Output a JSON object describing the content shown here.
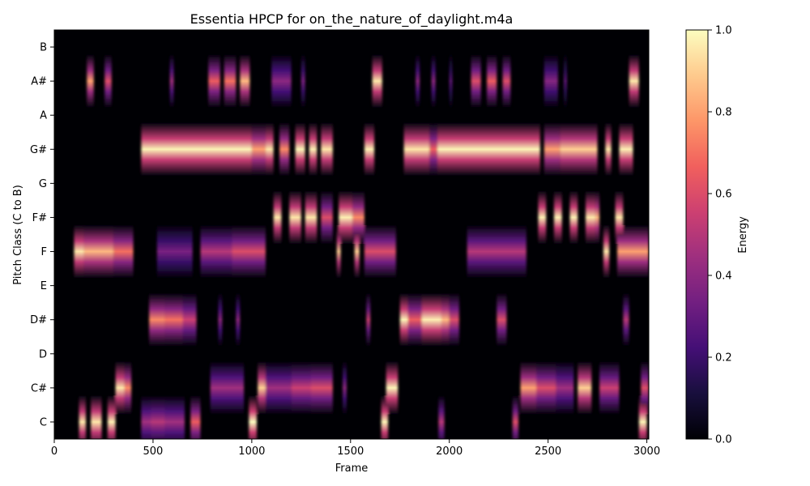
{
  "chart_data": {
    "type": "heatmap",
    "title": "Essentia HPCP for on_the_nature_of_daylight.m4a",
    "xlabel": "Frame",
    "ylabel": "Pitch Class (C to B)",
    "xlim": [
      0,
      3010
    ],
    "x_ticks": [
      0,
      500,
      1000,
      1500,
      2000,
      2500,
      3000
    ],
    "pitch_classes": [
      "C",
      "C#",
      "D",
      "D#",
      "E",
      "F",
      "F#",
      "G",
      "G#",
      "A",
      "A#",
      "B"
    ],
    "colorbar": {
      "label": "Energy",
      "range": [
        0,
        1
      ],
      "ticks": [
        "0.0",
        "0.2",
        "0.4",
        "0.6",
        "0.8",
        "1.0"
      ],
      "colormap": "magma",
      "stops": [
        "#000004",
        "#180f3d",
        "#440f76",
        "#721f81",
        "#9e2f7f",
        "#cd4071",
        "#f1605d",
        "#fd9668",
        "#feca8d",
        "#fcfdbf"
      ]
    },
    "segments": [
      {
        "pitch": "C",
        "start": 125,
        "end": 160,
        "value": 0.95
      },
      {
        "pitch": "C",
        "start": 185,
        "end": 240,
        "value": 0.95
      },
      {
        "pitch": "C",
        "start": 270,
        "end": 310,
        "value": 0.97
      },
      {
        "pitch": "C",
        "start": 440,
        "end": 490,
        "value": 0.45
      },
      {
        "pitch": "C",
        "start": 490,
        "end": 560,
        "value": 0.5
      },
      {
        "pitch": "C",
        "start": 560,
        "end": 660,
        "value": 0.45
      },
      {
        "pitch": "C",
        "start": 690,
        "end": 740,
        "value": 0.65
      },
      {
        "pitch": "C",
        "start": 985,
        "end": 1025,
        "value": 1.0
      },
      {
        "pitch": "C",
        "start": 1655,
        "end": 1690,
        "value": 0.98
      },
      {
        "pitch": "C",
        "start": 1945,
        "end": 1975,
        "value": 0.5
      },
      {
        "pitch": "C",
        "start": 2320,
        "end": 2350,
        "value": 0.6
      },
      {
        "pitch": "C",
        "start": 2960,
        "end": 3000,
        "value": 0.98
      },
      {
        "pitch": "C#",
        "start": 310,
        "end": 355,
        "value": 0.95
      },
      {
        "pitch": "C#",
        "start": 355,
        "end": 390,
        "value": 0.75
      },
      {
        "pitch": "C#",
        "start": 790,
        "end": 960,
        "value": 0.45
      },
      {
        "pitch": "C#",
        "start": 1030,
        "end": 1070,
        "value": 0.9
      },
      {
        "pitch": "C#",
        "start": 1070,
        "end": 1200,
        "value": 0.45
      },
      {
        "pitch": "C#",
        "start": 1200,
        "end": 1300,
        "value": 0.55
      },
      {
        "pitch": "C#",
        "start": 1300,
        "end": 1410,
        "value": 0.6
      },
      {
        "pitch": "C#",
        "start": 1460,
        "end": 1480,
        "value": 0.4
      },
      {
        "pitch": "C#",
        "start": 1680,
        "end": 1740,
        "value": 0.98
      },
      {
        "pitch": "C#",
        "start": 2360,
        "end": 2440,
        "value": 0.8
      },
      {
        "pitch": "C#",
        "start": 2440,
        "end": 2540,
        "value": 0.6
      },
      {
        "pitch": "C#",
        "start": 2540,
        "end": 2630,
        "value": 0.45
      },
      {
        "pitch": "C#",
        "start": 2650,
        "end": 2720,
        "value": 0.9
      },
      {
        "pitch": "C#",
        "start": 2760,
        "end": 2860,
        "value": 0.55
      },
      {
        "pitch": "C#",
        "start": 2970,
        "end": 3010,
        "value": 0.6
      },
      {
        "pitch": "D#",
        "start": 480,
        "end": 560,
        "value": 0.75
      },
      {
        "pitch": "D#",
        "start": 560,
        "end": 650,
        "value": 0.7
      },
      {
        "pitch": "D#",
        "start": 650,
        "end": 720,
        "value": 0.55
      },
      {
        "pitch": "D#",
        "start": 830,
        "end": 850,
        "value": 0.4
      },
      {
        "pitch": "D#",
        "start": 920,
        "end": 940,
        "value": 0.4
      },
      {
        "pitch": "D#",
        "start": 1580,
        "end": 1600,
        "value": 0.55
      },
      {
        "pitch": "D#",
        "start": 1750,
        "end": 1790,
        "value": 0.98
      },
      {
        "pitch": "D#",
        "start": 1790,
        "end": 1860,
        "value": 0.65
      },
      {
        "pitch": "D#",
        "start": 1860,
        "end": 1960,
        "value": 0.97
      },
      {
        "pitch": "D#",
        "start": 1960,
        "end": 2000,
        "value": 0.85
      },
      {
        "pitch": "D#",
        "start": 2000,
        "end": 2050,
        "value": 0.6
      },
      {
        "pitch": "D#",
        "start": 2240,
        "end": 2290,
        "value": 0.6
      },
      {
        "pitch": "D#",
        "start": 2880,
        "end": 2910,
        "value": 0.5
      },
      {
        "pitch": "F",
        "start": 100,
        "end": 150,
        "value": 0.95
      },
      {
        "pitch": "F",
        "start": 150,
        "end": 300,
        "value": 0.85
      },
      {
        "pitch": "F",
        "start": 300,
        "end": 400,
        "value": 0.7
      },
      {
        "pitch": "F",
        "start": 520,
        "end": 700,
        "value": 0.35
      },
      {
        "pitch": "F",
        "start": 740,
        "end": 900,
        "value": 0.5
      },
      {
        "pitch": "F",
        "start": 900,
        "end": 1070,
        "value": 0.6
      },
      {
        "pitch": "F",
        "start": 1430,
        "end": 1450,
        "value": 0.9
      },
      {
        "pitch": "F",
        "start": 1520,
        "end": 1545,
        "value": 0.9
      },
      {
        "pitch": "F",
        "start": 1570,
        "end": 1730,
        "value": 0.6
      },
      {
        "pitch": "F",
        "start": 2090,
        "end": 2390,
        "value": 0.5
      },
      {
        "pitch": "F",
        "start": 2780,
        "end": 2810,
        "value": 0.95
      },
      {
        "pitch": "F",
        "start": 2850,
        "end": 3010,
        "value": 0.8
      },
      {
        "pitch": "F#",
        "start": 1110,
        "end": 1150,
        "value": 0.95
      },
      {
        "pitch": "F#",
        "start": 1190,
        "end": 1250,
        "value": 0.95
      },
      {
        "pitch": "F#",
        "start": 1270,
        "end": 1330,
        "value": 0.95
      },
      {
        "pitch": "F#",
        "start": 1350,
        "end": 1410,
        "value": 0.6
      },
      {
        "pitch": "F#",
        "start": 1440,
        "end": 1510,
        "value": 0.97
      },
      {
        "pitch": "F#",
        "start": 1510,
        "end": 1570,
        "value": 0.75
      },
      {
        "pitch": "F#",
        "start": 2450,
        "end": 2490,
        "value": 0.97
      },
      {
        "pitch": "F#",
        "start": 2530,
        "end": 2570,
        "value": 0.97
      },
      {
        "pitch": "F#",
        "start": 2610,
        "end": 2650,
        "value": 0.97
      },
      {
        "pitch": "F#",
        "start": 2690,
        "end": 2740,
        "value": 0.95
      },
      {
        "pitch": "F#",
        "start": 2740,
        "end": 2760,
        "value": 0.85
      },
      {
        "pitch": "F#",
        "start": 2840,
        "end": 2880,
        "value": 0.95
      },
      {
        "pitch": "G#",
        "start": 440,
        "end": 1000,
        "value": 0.98
      },
      {
        "pitch": "G#",
        "start": 1000,
        "end": 1070,
        "value": 0.8
      },
      {
        "pitch": "G#",
        "start": 1070,
        "end": 1110,
        "value": 0.95
      },
      {
        "pitch": "G#",
        "start": 1140,
        "end": 1190,
        "value": 0.75
      },
      {
        "pitch": "G#",
        "start": 1220,
        "end": 1270,
        "value": 0.98
      },
      {
        "pitch": "G#",
        "start": 1290,
        "end": 1330,
        "value": 0.97
      },
      {
        "pitch": "G#",
        "start": 1350,
        "end": 1410,
        "value": 0.95
      },
      {
        "pitch": "G#",
        "start": 1570,
        "end": 1620,
        "value": 0.97
      },
      {
        "pitch": "G#",
        "start": 1770,
        "end": 1900,
        "value": 0.95
      },
      {
        "pitch": "G#",
        "start": 1900,
        "end": 1940,
        "value": 0.65
      },
      {
        "pitch": "G#",
        "start": 1940,
        "end": 2460,
        "value": 0.98
      },
      {
        "pitch": "G#",
        "start": 2480,
        "end": 2560,
        "value": 0.8
      },
      {
        "pitch": "G#",
        "start": 2560,
        "end": 2750,
        "value": 0.9
      },
      {
        "pitch": "G#",
        "start": 2790,
        "end": 2820,
        "value": 0.95
      },
      {
        "pitch": "G#",
        "start": 2860,
        "end": 2930,
        "value": 0.97
      },
      {
        "pitch": "A#",
        "start": 165,
        "end": 200,
        "value": 0.8
      },
      {
        "pitch": "A#",
        "start": 255,
        "end": 290,
        "value": 0.6
      },
      {
        "pitch": "A#",
        "start": 585,
        "end": 605,
        "value": 0.45
      },
      {
        "pitch": "A#",
        "start": 780,
        "end": 840,
        "value": 0.65
      },
      {
        "pitch": "A#",
        "start": 860,
        "end": 920,
        "value": 0.7
      },
      {
        "pitch": "A#",
        "start": 940,
        "end": 990,
        "value": 0.85
      },
      {
        "pitch": "A#",
        "start": 1100,
        "end": 1200,
        "value": 0.4
      },
      {
        "pitch": "A#",
        "start": 1250,
        "end": 1270,
        "value": 0.35
      },
      {
        "pitch": "A#",
        "start": 1610,
        "end": 1660,
        "value": 0.95
      },
      {
        "pitch": "A#",
        "start": 1830,
        "end": 1850,
        "value": 0.4
      },
      {
        "pitch": "A#",
        "start": 1910,
        "end": 1930,
        "value": 0.4
      },
      {
        "pitch": "A#",
        "start": 2000,
        "end": 2015,
        "value": 0.3
      },
      {
        "pitch": "A#",
        "start": 2110,
        "end": 2160,
        "value": 0.6
      },
      {
        "pitch": "A#",
        "start": 2190,
        "end": 2240,
        "value": 0.65
      },
      {
        "pitch": "A#",
        "start": 2270,
        "end": 2310,
        "value": 0.6
      },
      {
        "pitch": "A#",
        "start": 2480,
        "end": 2550,
        "value": 0.38
      },
      {
        "pitch": "A#",
        "start": 2580,
        "end": 2595,
        "value": 0.3
      },
      {
        "pitch": "A#",
        "start": 2910,
        "end": 2960,
        "value": 0.95
      }
    ]
  }
}
